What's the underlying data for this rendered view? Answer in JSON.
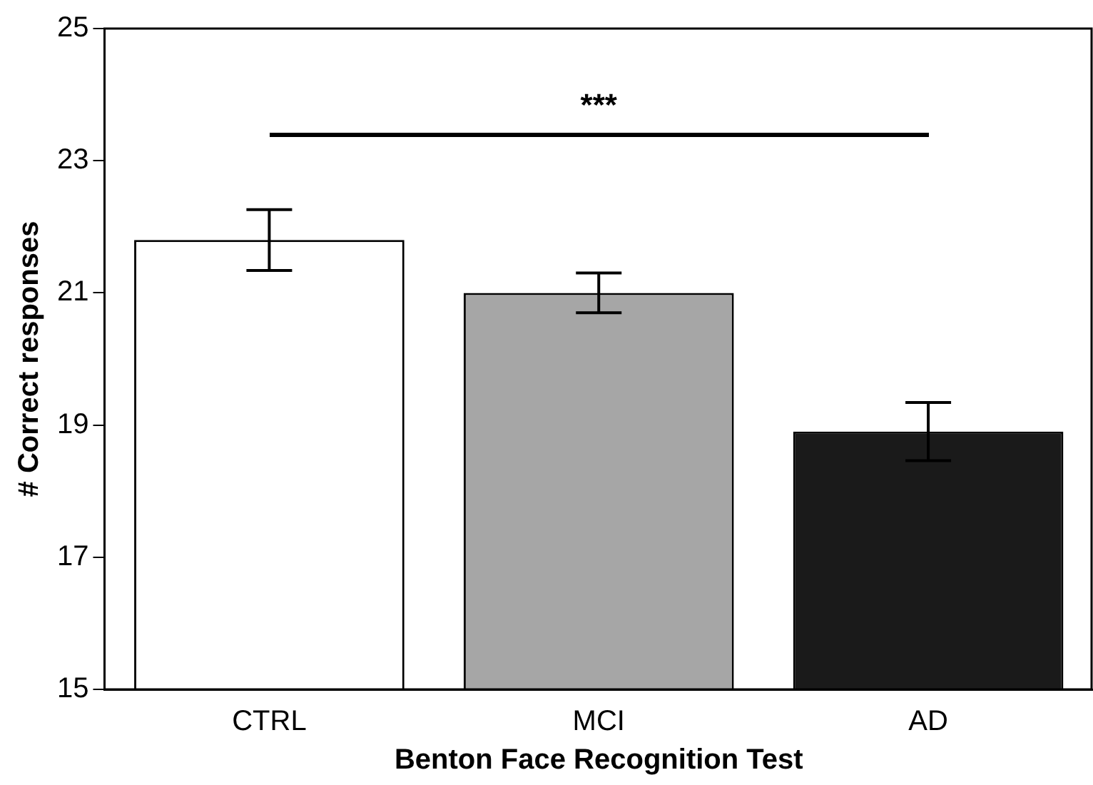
{
  "chart_data": {
    "type": "bar",
    "xlabel": "Benton Face Recognition Test",
    "ylabel": "# Correct responses",
    "categories": [
      "CTRL",
      "MCI",
      "AD"
    ],
    "values": [
      21.8,
      21.0,
      18.9
    ],
    "colors": [
      "#ffffff",
      "#a6a6a6",
      "#1a1a1a"
    ],
    "errors": [
      0.46,
      0.3,
      0.44
    ],
    "ylim": [
      15,
      25
    ],
    "yticks": [
      15,
      17,
      19,
      21,
      23,
      25
    ],
    "grid": false,
    "annotations": [
      "***"
    ]
  }
}
